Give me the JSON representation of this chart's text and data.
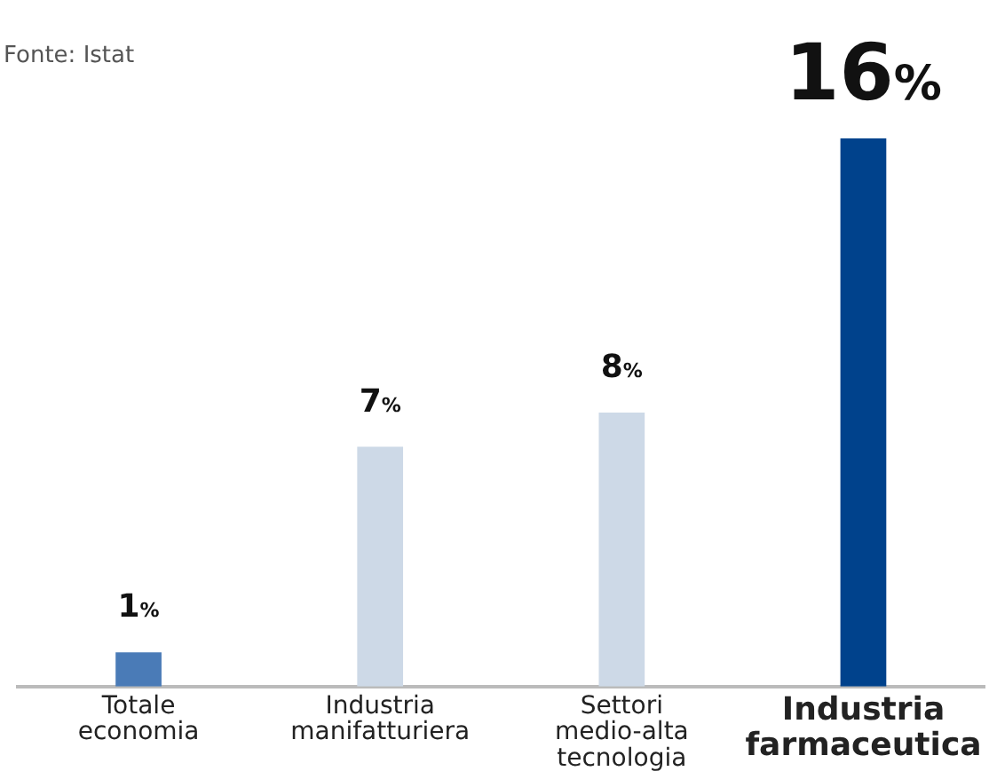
{
  "chart_data": {
    "type": "bar",
    "annotations": [
      "Fonte: Istat"
    ],
    "categories": [
      "Totale economia",
      "Industria manifatturiera",
      "Settori medio-alta tecnologia",
      "Industria farmaceutica"
    ],
    "values": [
      1,
      7,
      8,
      16
    ],
    "colors": [
      "#4a7bb7",
      "#cdd9e7",
      "#cdd9e7",
      "#00428c"
    ],
    "value_labels": [
      "1%",
      "7%",
      "8%",
      "16%"
    ],
    "ylim": [
      0,
      16
    ],
    "grid": false,
    "legend": false,
    "tick_labels": "x"
  }
}
